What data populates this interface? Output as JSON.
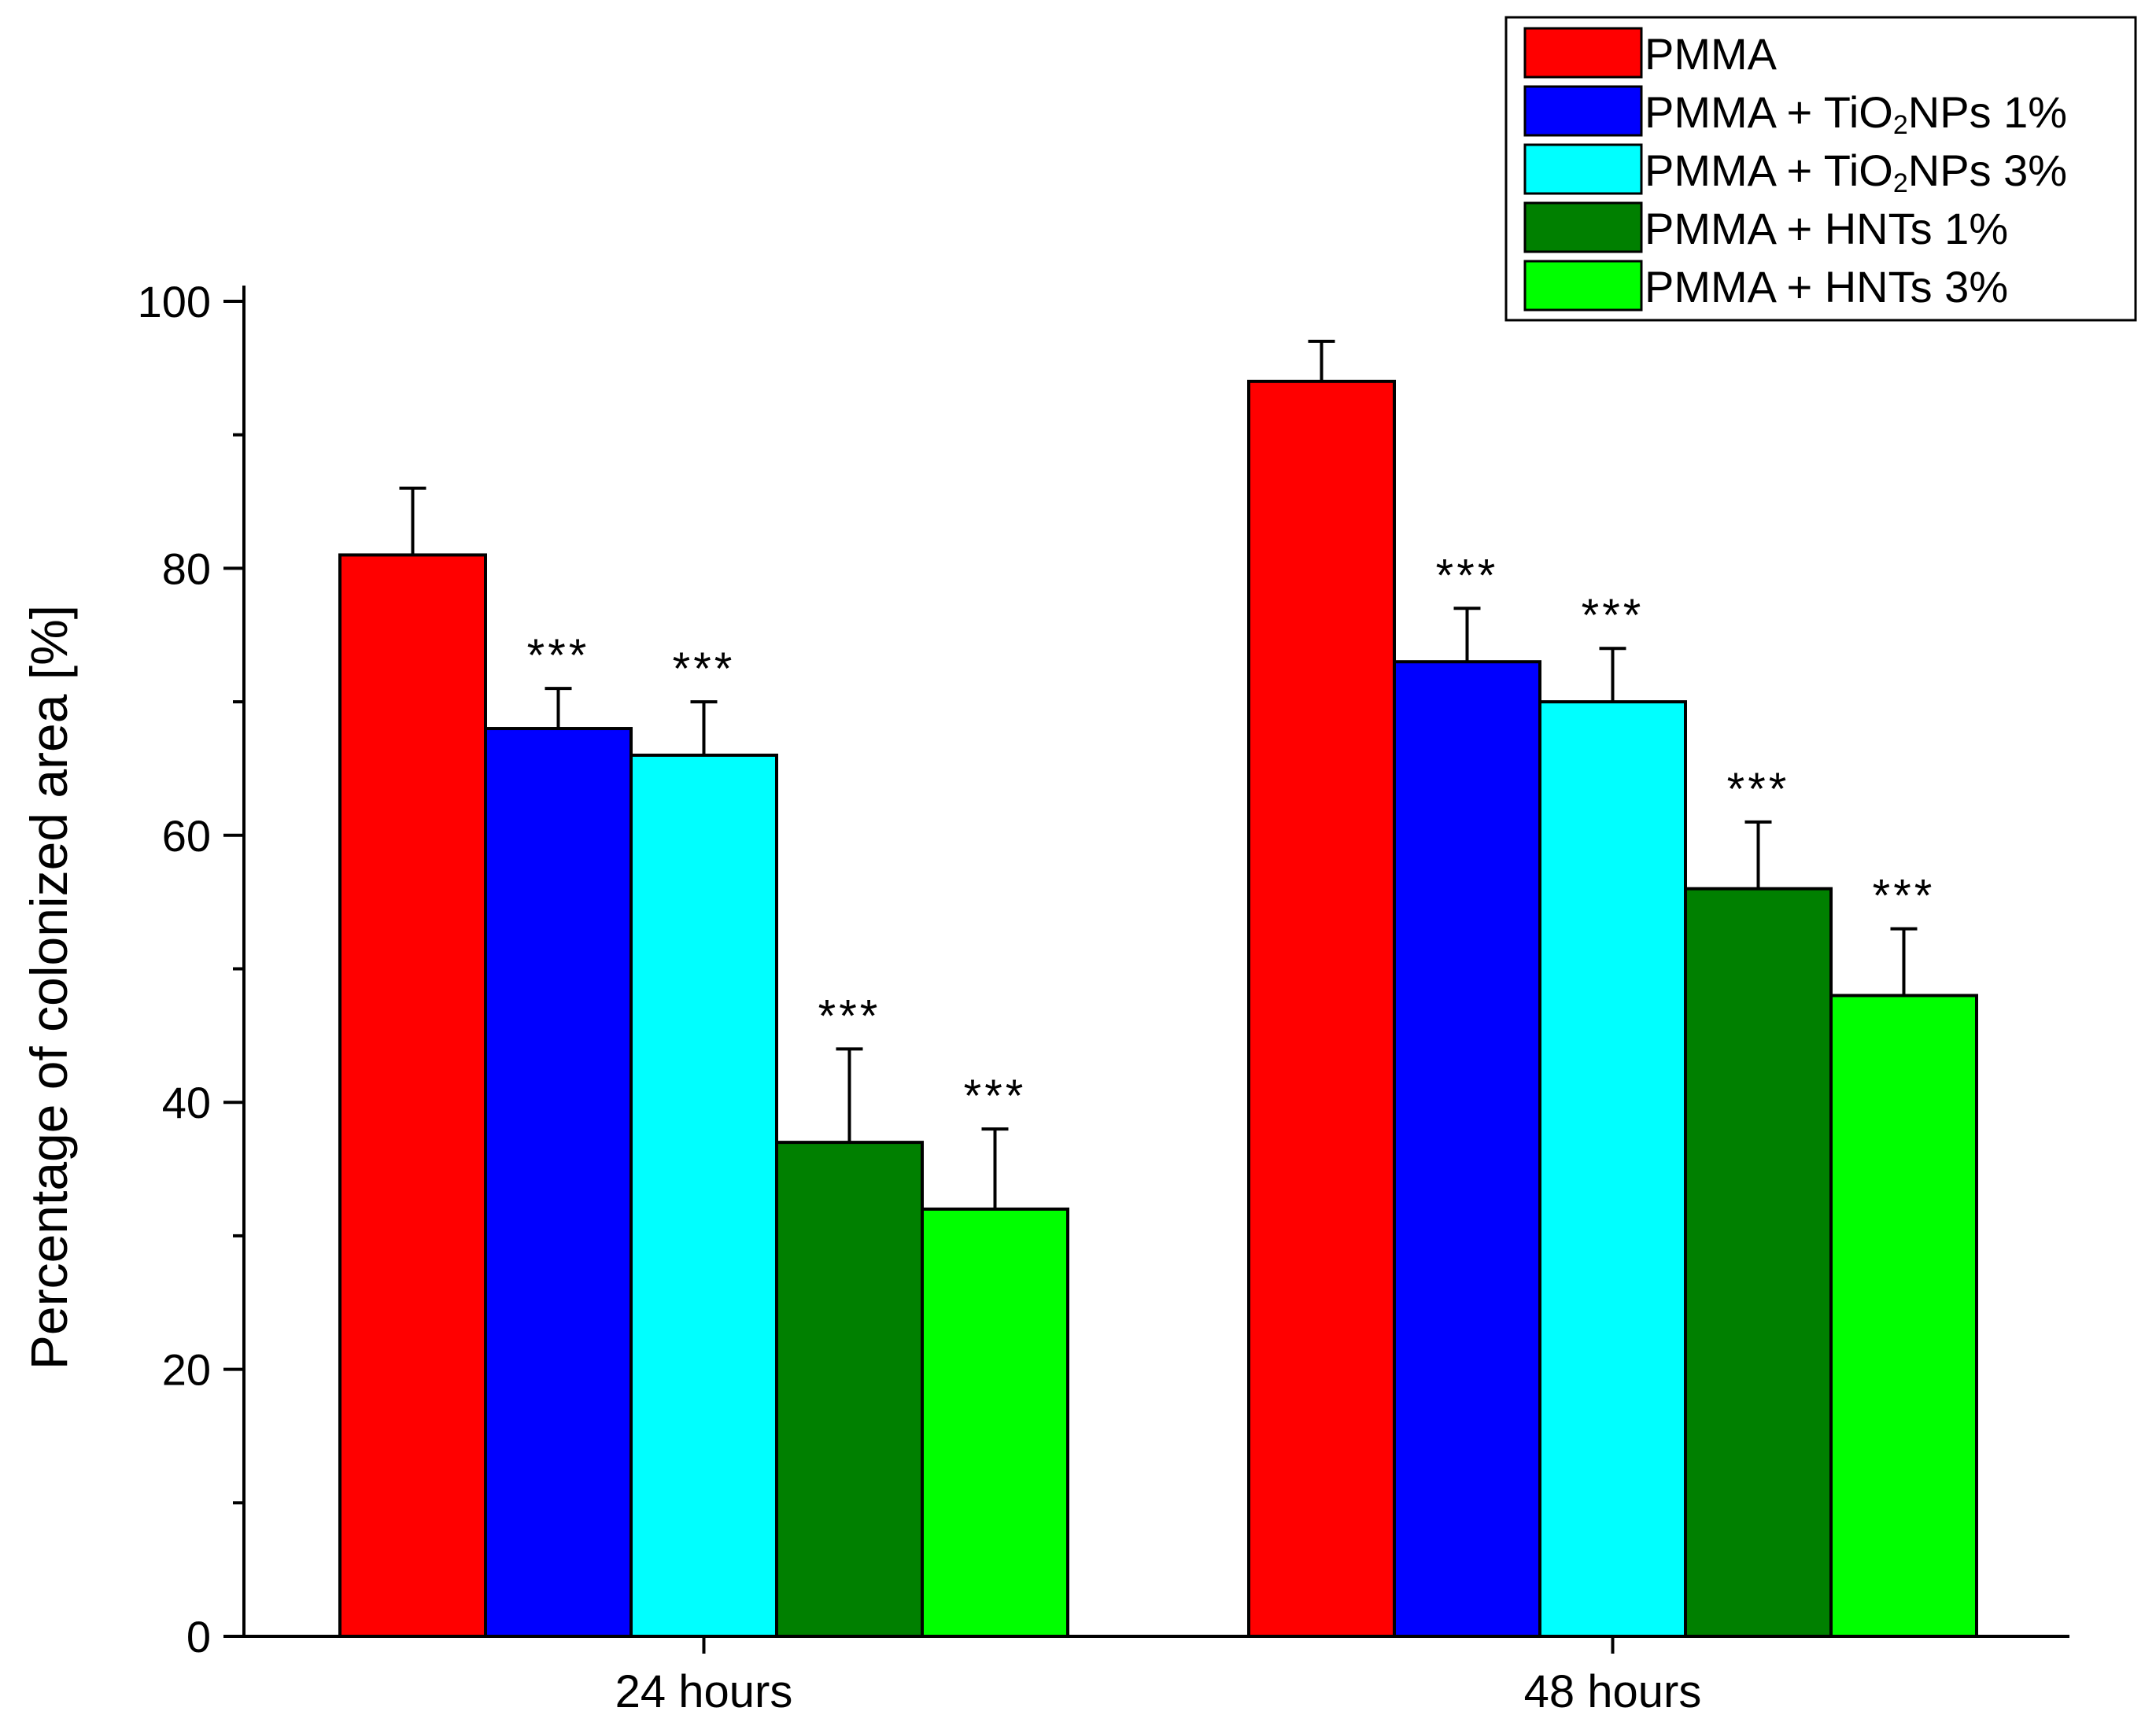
{
  "chart_data": {
    "type": "bar",
    "title": "",
    "xlabel": "",
    "ylabel": "Percentage of colonized area [%]",
    "ylim": [
      0,
      100
    ],
    "yticks": [
      0,
      20,
      40,
      60,
      80,
      100
    ],
    "grid": false,
    "legend_position": "top-right",
    "categories": [
      "24 hours",
      "48 hours"
    ],
    "series": [
      {
        "name": "PMMA",
        "legend_parts": [
          "PMMA"
        ],
        "color": "#ff0000",
        "values": [
          81,
          94
        ],
        "errors": [
          5,
          3
        ],
        "significance": [
          "",
          ""
        ]
      },
      {
        "name": "PMMA + TiO2NPs 1%",
        "legend_parts": [
          "PMMA + TiO",
          "2",
          "NPs 1%"
        ],
        "color": "#0000ff",
        "values": [
          68,
          73
        ],
        "errors": [
          3,
          4
        ],
        "significance": [
          "***",
          "***"
        ]
      },
      {
        "name": "PMMA + TiO2NPs 3%",
        "legend_parts": [
          "PMMA + TiO",
          "2",
          "NPs 3%"
        ],
        "color": "#00ffff",
        "values": [
          66,
          70
        ],
        "errors": [
          4,
          4
        ],
        "significance": [
          "***",
          "***"
        ]
      },
      {
        "name": "PMMA + HNTs 1%",
        "legend_parts": [
          "PMMA + HNTs 1%"
        ],
        "color": "#008000",
        "values": [
          37,
          56
        ],
        "errors": [
          7,
          5
        ],
        "significance": [
          "***",
          "***"
        ]
      },
      {
        "name": "PMMA + HNTs 3%",
        "legend_parts": [
          "PMMA + HNTs 3%"
        ],
        "color": "#00ff00",
        "values": [
          32,
          48
        ],
        "errors": [
          6,
          5
        ],
        "significance": [
          "***",
          "***"
        ]
      }
    ]
  }
}
